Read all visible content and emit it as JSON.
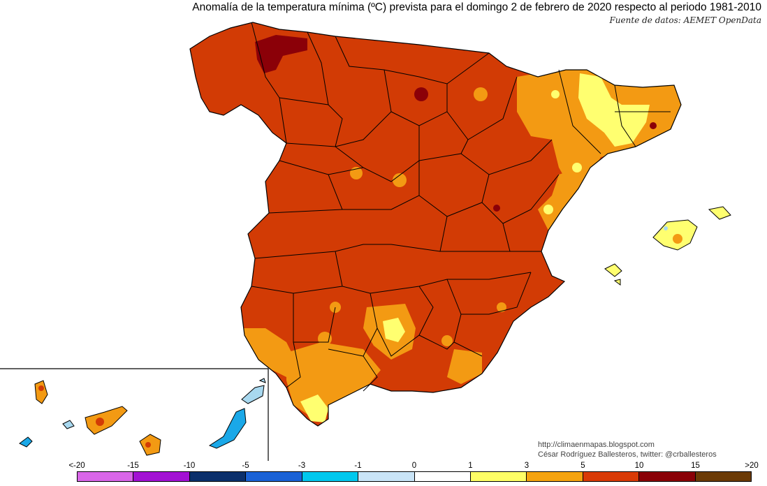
{
  "title": "Anomalía de la temperatura mínima (ºC) prevista para el domingo 2 de febrero de 2020 respecto al periodo 1981-2010",
  "source": "Fuente de datos: AEMET OpenData",
  "credits": {
    "line1": "http://climaenmapas.blogspot.com",
    "line2": "César Rodríguez Ballesteros, twitter: @crballesteros"
  },
  "legend": {
    "labels": [
      "<-20",
      "-15",
      "-10",
      "-5",
      "-3",
      "-1",
      "0",
      "1",
      "3",
      "5",
      "10",
      "15",
      ">20"
    ],
    "colors": [
      "#d966e8",
      "#a311d4",
      "#0b2f6b",
      "#1b62d6",
      "#00c8ee",
      "#c9e4f7",
      "#ffffff",
      "#ffff66",
      "#f5a30f",
      "#d93a06",
      "#8a0007",
      "#6b3a05"
    ]
  },
  "map": {
    "colors": {
      "base": "#d23b05",
      "orange": "#f39a13",
      "yellow": "#ffff70",
      "dark": "#8b0008",
      "light_blue": "#a8d8ef",
      "cyan": "#1aa8e8",
      "border": "#000000"
    }
  }
}
